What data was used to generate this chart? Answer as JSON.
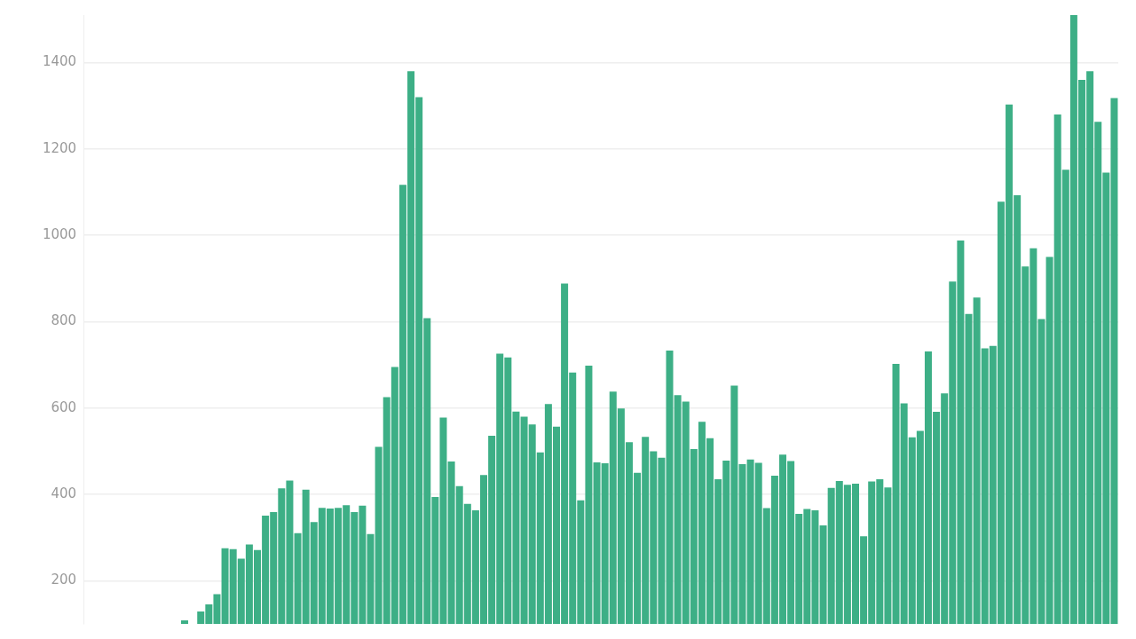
{
  "chart_data": {
    "type": "bar",
    "color": "#3daf86",
    "ylim": [
      100,
      1510
    ],
    "yticks": [
      200,
      400,
      600,
      800,
      1000,
      1200,
      1400
    ],
    "grid": "y",
    "tick_labels": "y",
    "legend": false,
    "categories": [
      null,
      null,
      null,
      null,
      null,
      null,
      null,
      null,
      null,
      null,
      null,
      null,
      null,
      null,
      null,
      null,
      null,
      null,
      null,
      null,
      null,
      null,
      null,
      null,
      null,
      null,
      null,
      null,
      null,
      null,
      null,
      null,
      null,
      null,
      null,
      null,
      null,
      null,
      null,
      null,
      null,
      null,
      null,
      null,
      null,
      null,
      null,
      null,
      null,
      null,
      null,
      null,
      null,
      null,
      null,
      null,
      null,
      null,
      null,
      null,
      null,
      null,
      null,
      null,
      null,
      null,
      null,
      null,
      null,
      null,
      null,
      null,
      null,
      null,
      null,
      null,
      null,
      null,
      null,
      null,
      null,
      null,
      null,
      null,
      null,
      null,
      null,
      null,
      null,
      null,
      null,
      null,
      null,
      null,
      null,
      null,
      null,
      null,
      null,
      null,
      null,
      null,
      null,
      null,
      null,
      null,
      null,
      null,
      null,
      null,
      null,
      null,
      null,
      null,
      null,
      null,
      null,
      null,
      null,
      null,
      null,
      null,
      null,
      null,
      null,
      null,
      null,
      null
    ],
    "values": [
      null,
      null,
      null,
      null,
      null,
      null,
      null,
      null,
      null,
      null,
      null,
      null,
      108,
      null,
      129,
      145,
      169,
      275,
      273,
      251,
      284,
      271,
      351,
      359,
      414,
      432,
      310,
      411,
      336,
      369,
      367,
      369,
      375,
      359,
      374,
      308,
      510,
      625,
      695,
      1117,
      1380,
      1320,
      808,
      394,
      578,
      476,
      419,
      378,
      363,
      445,
      536,
      726,
      717,
      592,
      580,
      562,
      497,
      609,
      557,
      888,
      682,
      386,
      698,
      474,
      472,
      638,
      599,
      521,
      450,
      533,
      500,
      485,
      733,
      630,
      615,
      505,
      568,
      530,
      435,
      478,
      652,
      470,
      481,
      473,
      368,
      443,
      492,
      477,
      355,
      366,
      363,
      328,
      415,
      431,
      422,
      425,
      303,
      430,
      435,
      416,
      702,
      611,
      532,
      547,
      731,
      591,
      634,
      893,
      988,
      818,
      856,
      738,
      744,
      1078,
      1303,
      1093,
      928,
      970,
      806,
      950,
      1280,
      1152,
      1510,
      1360,
      1380,
      1263,
      1145,
      1318
    ]
  }
}
